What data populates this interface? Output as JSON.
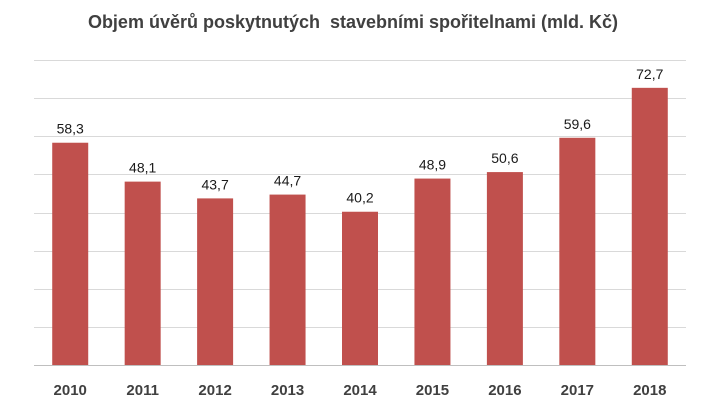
{
  "chart_data": {
    "type": "bar",
    "title": "Objem úvěrů poskytnutých  stavebními spořitelnami (mld. Kč)",
    "categories": [
      "2010",
      "2011",
      "2012",
      "2013",
      "2014",
      "2015",
      "2016",
      "2017",
      "2018"
    ],
    "values": [
      58.3,
      48.1,
      43.7,
      44.7,
      40.2,
      48.9,
      50.6,
      59.6,
      72.7
    ],
    "value_labels": [
      "58,3",
      "48,1",
      "43,7",
      "44,7",
      "40,2",
      "48,9",
      "50,6",
      "59,6",
      "72,7"
    ],
    "ylim": [
      0,
      80
    ],
    "grid": true,
    "colors": {
      "bar": "#c0504d",
      "grid": "#d9d9d9",
      "axis": "#bfbfbf"
    }
  }
}
